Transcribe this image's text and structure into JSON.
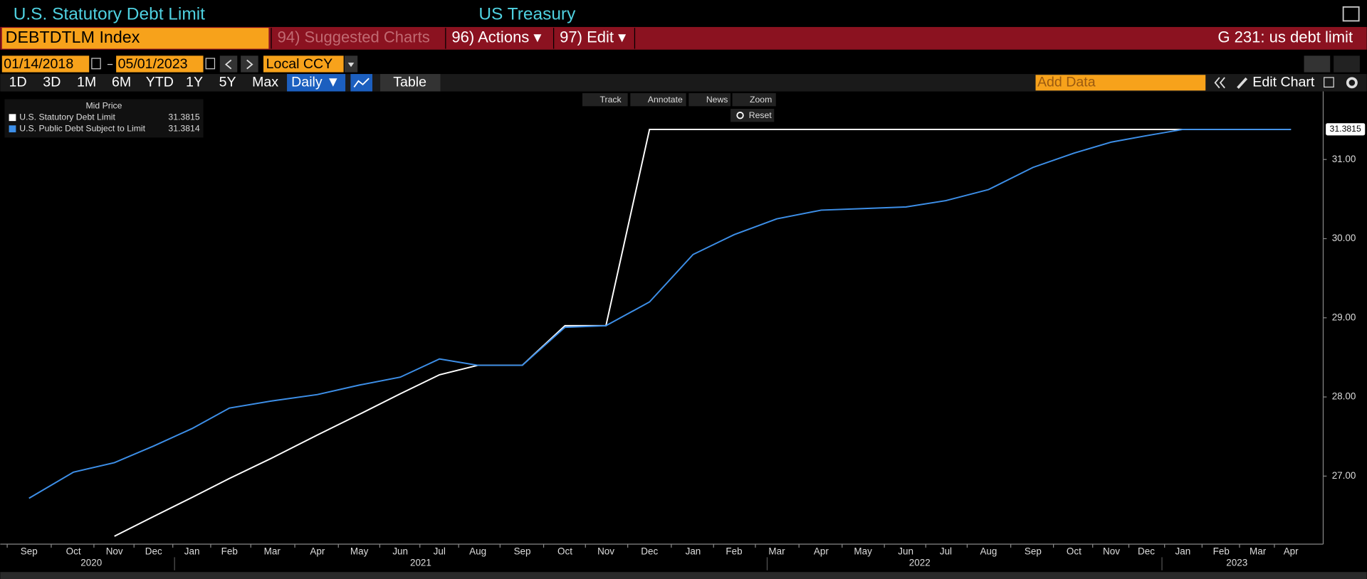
{
  "header": {
    "title": "U.S. Statutory Debt Limit",
    "source": "US Treasury"
  },
  "toolbar": {
    "ticker": "DEBTDTLM Index",
    "menu": [
      "94) Suggested Charts",
      "96) Actions ▾",
      "97) Edit ▾"
    ],
    "function": "G 231: us debt limit"
  },
  "range": {
    "start": "01/14/2018",
    "end": "05/01/2023",
    "currency": "Local CCY"
  },
  "periods": [
    "1D",
    "3D",
    "1M",
    "6M",
    "YTD",
    "1Y",
    "5Y",
    "Max"
  ],
  "frequency": "Daily ▼",
  "table": "Table",
  "add_data": "Add Data",
  "edit_chart": "Edit Chart",
  "chart_tools": [
    "Track",
    "Annotate",
    "News",
    "Zoom"
  ],
  "reset": "Reset",
  "chart_data": {
    "type": "line",
    "legend_title": "Mid Price",
    "categories": [
      "Sep",
      "Oct",
      "Nov",
      "Dec",
      "Jan",
      "Feb",
      "Mar",
      "Apr",
      "May",
      "Jun",
      "Jul",
      "Aug",
      "Sep",
      "Oct",
      "Nov",
      "Dec",
      "Jan",
      "Feb",
      "Mar",
      "Apr",
      "May",
      "Jun",
      "Jul",
      "Aug",
      "Sep",
      "Oct",
      "Nov",
      "Dec",
      "Jan",
      "Feb",
      "Mar",
      "Apr"
    ],
    "years": [
      "2020",
      "2021",
      "2022",
      "2023"
    ],
    "ylim": [
      26.14,
      31.86
    ],
    "yticks": [
      {
        "value": 27,
        "label": "27.00"
      },
      {
        "value": 28,
        "label": "28.00"
      },
      {
        "value": 29,
        "label": "29.00"
      },
      {
        "value": 30,
        "label": "30.00"
      },
      {
        "value": 31,
        "label": "31.00"
      }
    ],
    "series": [
      {
        "name": "U.S. Statutory Debt Limit",
        "color": "#ffffff",
        "last_value": 31.3815,
        "values": [
          null,
          null,
          26.24,
          26.49,
          26.73,
          26.97,
          27.23,
          27.52,
          27.78,
          28.04,
          28.28,
          28.4,
          28.4,
          28.9,
          28.9,
          31.38,
          31.38,
          31.38,
          31.38,
          31.38,
          31.38,
          31.38,
          31.38,
          31.38,
          31.38,
          31.38,
          31.38,
          31.38,
          31.38,
          31.38,
          31.38,
          31.38
        ]
      },
      {
        "name": "U.S. Public Debt Subject to Limit",
        "color": "#3d8fe8",
        "last_value": 31.3814,
        "values": [
          26.72,
          27.05,
          27.17,
          27.38,
          27.6,
          27.86,
          27.95,
          28.03,
          28.15,
          28.25,
          28.48,
          28.4,
          28.4,
          28.88,
          28.9,
          29.2,
          29.8,
          30.05,
          30.25,
          30.36,
          30.38,
          30.4,
          30.48,
          30.62,
          30.9,
          31.08,
          31.22,
          31.3,
          31.38,
          31.38,
          31.38,
          31.38
        ]
      }
    ]
  }
}
